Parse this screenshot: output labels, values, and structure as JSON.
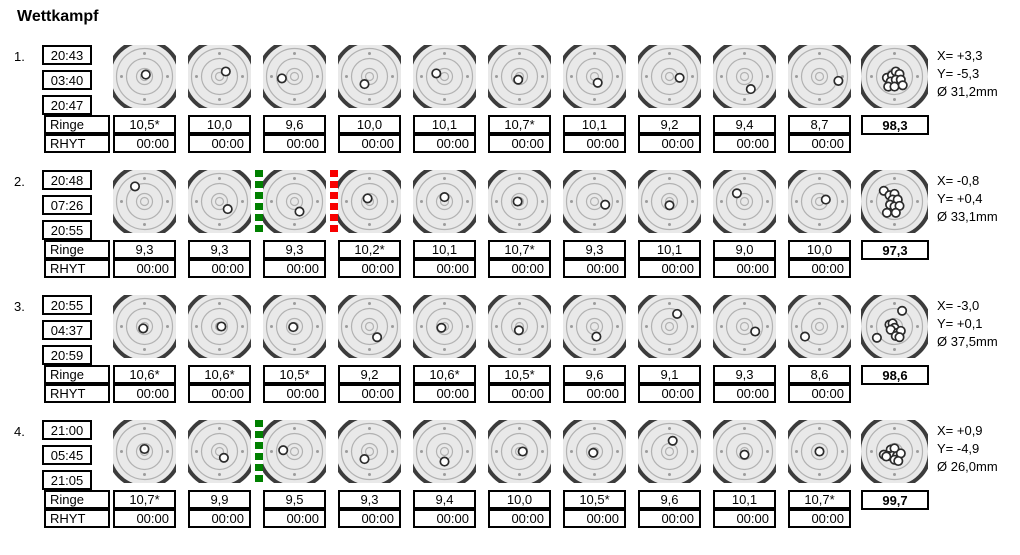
{
  "title": "Wettkampf",
  "row_labels": {
    "score": "Ringe",
    "rhythm": "RHYT"
  },
  "rhythm_value": "00:00",
  "colors": {
    "separator_green": "#008000",
    "separator_red": "#f80000",
    "target_fill": "#e9e9e9",
    "target_outer_ring": "#3c3c3c",
    "target_inner_rings": "#b2b2b2",
    "target_ticks": "#9c9c9c",
    "shot_fill": "#ffffff",
    "shot_stroke": "#2b2b2b",
    "box_border": "#000000"
  },
  "series": [
    {
      "number": "1.",
      "times": [
        "20:43",
        "03:40",
        "20:47"
      ],
      "shots": [
        {
          "score": "10,5*",
          "pos": [
            0.52,
            0.47
          ]
        },
        {
          "score": "10,0",
          "pos": [
            0.6,
            0.42
          ]
        },
        {
          "score": "9,6",
          "pos": [
            0.3,
            0.53
          ]
        },
        {
          "score": "10,0",
          "pos": [
            0.42,
            0.62
          ]
        },
        {
          "score": "10,1",
          "pos": [
            0.37,
            0.45
          ]
        },
        {
          "score": "10,7*",
          "pos": [
            0.48,
            0.55
          ]
        },
        {
          "score": "10,1",
          "pos": [
            0.55,
            0.6
          ]
        },
        {
          "score": "9,2",
          "pos": [
            0.66,
            0.52
          ]
        },
        {
          "score": "9,4",
          "pos": [
            0.6,
            0.7
          ]
        },
        {
          "score": "8,7",
          "pos": [
            0.8,
            0.57
          ]
        }
      ],
      "separators": [],
      "total": "98,3",
      "stats": [
        "X= +3,3",
        "Y= -5,3",
        "Ø 31,2mm"
      ],
      "summary_shots": [
        [
          0.38,
          0.52
        ],
        [
          0.46,
          0.48
        ],
        [
          0.52,
          0.42
        ],
        [
          0.58,
          0.46
        ],
        [
          0.44,
          0.58
        ],
        [
          0.52,
          0.55
        ],
        [
          0.6,
          0.55
        ],
        [
          0.4,
          0.66
        ],
        [
          0.5,
          0.66
        ],
        [
          0.63,
          0.64
        ]
      ]
    },
    {
      "number": "2.",
      "times": [
        "20:48",
        "07:26",
        "20:55"
      ],
      "shots": [
        {
          "score": "9,3",
          "pos": [
            0.35,
            0.26
          ]
        },
        {
          "score": "9,3",
          "pos": [
            0.63,
            0.62
          ]
        },
        {
          "score": "9,3",
          "pos": [
            0.58,
            0.66
          ]
        },
        {
          "score": "10,2*",
          "pos": [
            0.47,
            0.45
          ]
        },
        {
          "score": "10,1",
          "pos": [
            0.5,
            0.43
          ]
        },
        {
          "score": "10,7*",
          "pos": [
            0.47,
            0.5
          ]
        },
        {
          "score": "9,3",
          "pos": [
            0.67,
            0.55
          ]
        },
        {
          "score": "10,1",
          "pos": [
            0.5,
            0.56
          ]
        },
        {
          "score": "9,0",
          "pos": [
            0.38,
            0.37
          ]
        },
        {
          "score": "10,0",
          "pos": [
            0.6,
            0.47
          ]
        }
      ],
      "separators": [
        {
          "after": 2,
          "color": "separator_green"
        },
        {
          "after": 3,
          "color": "separator_red"
        }
      ],
      "total": "97,3",
      "stats": [
        "X= -0,8",
        "Y= +0,4",
        "Ø 33,1mm"
      ],
      "summary_shots": [
        [
          0.33,
          0.33
        ],
        [
          0.42,
          0.4
        ],
        [
          0.5,
          0.38
        ],
        [
          0.47,
          0.47
        ],
        [
          0.55,
          0.47
        ],
        [
          0.43,
          0.55
        ],
        [
          0.5,
          0.58
        ],
        [
          0.58,
          0.57
        ],
        [
          0.38,
          0.68
        ],
        [
          0.52,
          0.68
        ]
      ]
    },
    {
      "number": "3.",
      "times": [
        "20:55",
        "04:37",
        "20:59"
      ],
      "shots": [
        {
          "score": "10,6*",
          "pos": [
            0.48,
            0.53
          ]
        },
        {
          "score": "10,6*",
          "pos": [
            0.53,
            0.5
          ]
        },
        {
          "score": "10,5*",
          "pos": [
            0.48,
            0.51
          ]
        },
        {
          "score": "9,2",
          "pos": [
            0.62,
            0.67
          ]
        },
        {
          "score": "10,6*",
          "pos": [
            0.45,
            0.52
          ]
        },
        {
          "score": "10,5*",
          "pos": [
            0.49,
            0.56
          ]
        },
        {
          "score": "9,6",
          "pos": [
            0.53,
            0.66
          ]
        },
        {
          "score": "9,1",
          "pos": [
            0.62,
            0.3
          ]
        },
        {
          "score": "9,3",
          "pos": [
            0.67,
            0.58
          ]
        },
        {
          "score": "8,6",
          "pos": [
            0.27,
            0.66
          ]
        }
      ],
      "separators": [],
      "total": "98,6",
      "stats": [
        "X= -3,0",
        "Y= +0,1",
        "Ø 37,5mm"
      ],
      "summary_shots": [
        [
          0.62,
          0.25
        ],
        [
          0.42,
          0.47
        ],
        [
          0.47,
          0.45
        ],
        [
          0.5,
          0.52
        ],
        [
          0.44,
          0.55
        ],
        [
          0.55,
          0.6
        ],
        [
          0.6,
          0.57
        ],
        [
          0.52,
          0.65
        ],
        [
          0.58,
          0.67
        ],
        [
          0.22,
          0.68
        ]
      ]
    },
    {
      "number": "4.",
      "times": [
        "21:00",
        "05:45",
        "21:05"
      ],
      "shots": [
        {
          "score": "10,7*",
          "pos": [
            0.5,
            0.46
          ]
        },
        {
          "score": "9,9",
          "pos": [
            0.57,
            0.6
          ]
        },
        {
          "score": "9,5",
          "pos": [
            0.32,
            0.48
          ]
        },
        {
          "score": "9,3",
          "pos": [
            0.42,
            0.62
          ]
        },
        {
          "score": "9,4",
          "pos": [
            0.5,
            0.66
          ]
        },
        {
          "score": "10,0",
          "pos": [
            0.55,
            0.5
          ]
        },
        {
          "score": "10,5*",
          "pos": [
            0.48,
            0.52
          ]
        },
        {
          "score": "9,6",
          "pos": [
            0.55,
            0.33
          ]
        },
        {
          "score": "10,1",
          "pos": [
            0.5,
            0.55
          ]
        },
        {
          "score": "10,7*",
          "pos": [
            0.5,
            0.5
          ]
        }
      ],
      "separators": [
        {
          "after": 2,
          "color": "separator_green"
        }
      ],
      "total": "99,7",
      "stats": [
        "X= +0,9",
        "Y= -4,9",
        "Ø 26,0mm"
      ],
      "summary_shots": [
        [
          0.44,
          0.47
        ],
        [
          0.5,
          0.45
        ],
        [
          0.33,
          0.55
        ],
        [
          0.4,
          0.57
        ],
        [
          0.47,
          0.57
        ],
        [
          0.54,
          0.57
        ],
        [
          0.6,
          0.53
        ],
        [
          0.5,
          0.63
        ],
        [
          0.56,
          0.65
        ],
        [
          0.37,
          0.58
        ]
      ]
    }
  ]
}
